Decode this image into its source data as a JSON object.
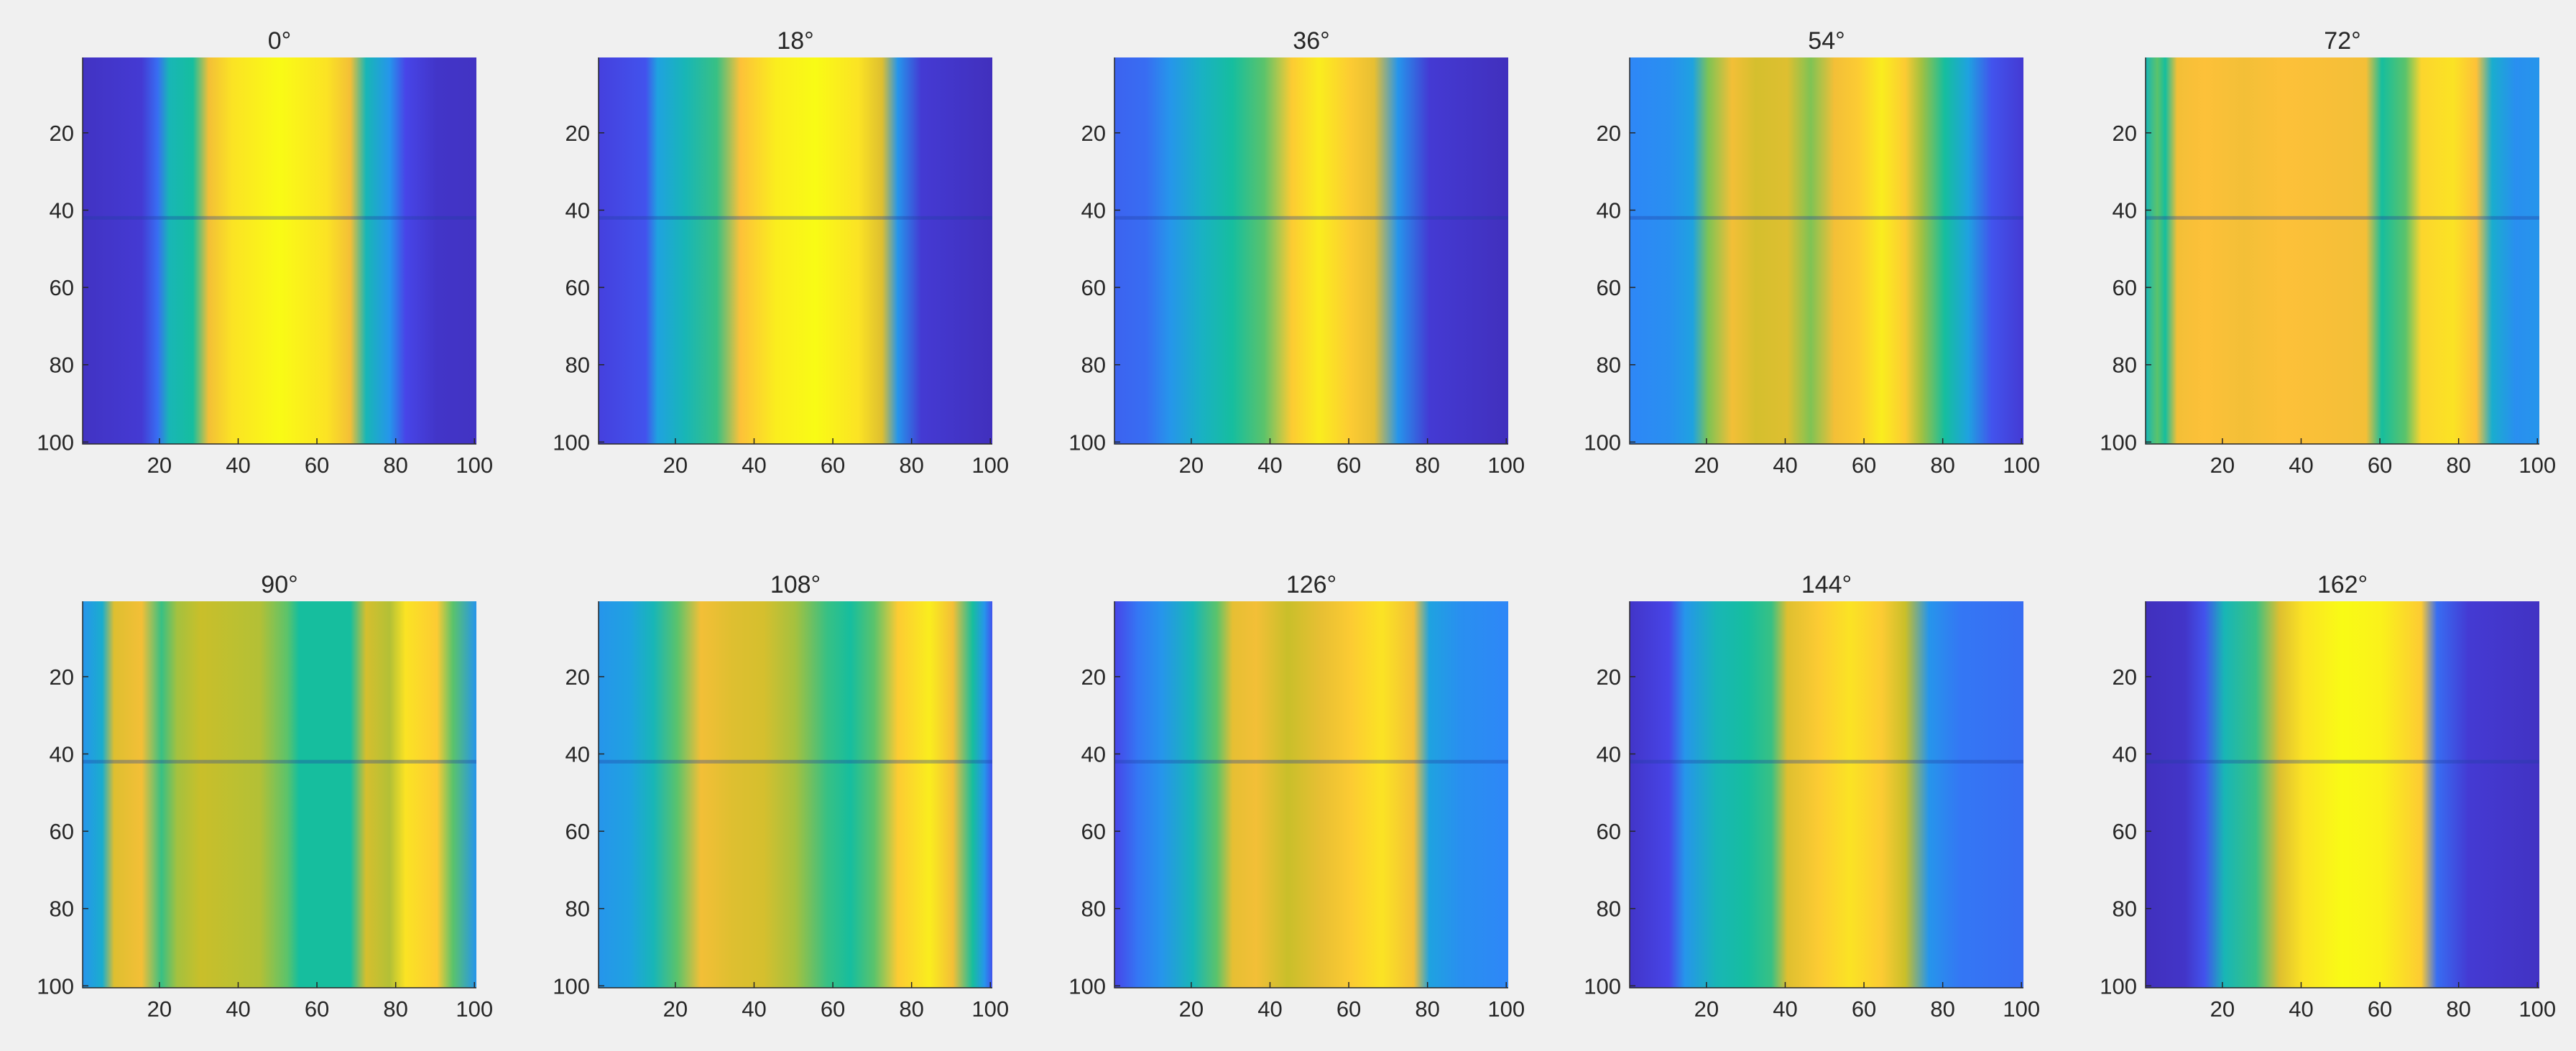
{
  "chart_data": [
    {
      "type": "heatmap",
      "title": "0°",
      "xlim": [
        1,
        100
      ],
      "ylim": [
        1,
        100
      ],
      "y_direction": "reverse",
      "xticks": [
        20,
        40,
        60,
        80,
        100
      ],
      "yticks": [
        20,
        40,
        60,
        80,
        100
      ],
      "row_band_at": 42,
      "column_profile": [
        [
          0,
          0.05
        ],
        [
          15,
          0.08
        ],
        [
          19,
          0.2
        ],
        [
          22,
          0.45
        ],
        [
          28,
          0.5
        ],
        [
          32,
          0.85
        ],
        [
          38,
          0.95
        ],
        [
          50,
          1.0
        ],
        [
          62,
          0.95
        ],
        [
          68,
          0.85
        ],
        [
          72,
          0.45
        ],
        [
          78,
          0.3
        ],
        [
          82,
          0.12
        ],
        [
          90,
          0.06
        ],
        [
          100,
          0.05
        ]
      ]
    },
    {
      "type": "heatmap",
      "title": "18°",
      "xlim": [
        1,
        100
      ],
      "ylim": [
        1,
        100
      ],
      "y_direction": "reverse",
      "xticks": [
        20,
        40,
        60,
        80,
        100
      ],
      "yticks": [
        20,
        40,
        60,
        80,
        100
      ],
      "row_band_at": 42,
      "column_profile": [
        [
          0,
          0.1
        ],
        [
          12,
          0.15
        ],
        [
          15,
          0.35
        ],
        [
          22,
          0.45
        ],
        [
          30,
          0.55
        ],
        [
          36,
          0.88
        ],
        [
          45,
          0.97
        ],
        [
          55,
          1.0
        ],
        [
          66,
          0.95
        ],
        [
          72,
          0.8
        ],
        [
          76,
          0.3
        ],
        [
          82,
          0.08
        ],
        [
          100,
          0.04
        ]
      ]
    },
    {
      "type": "heatmap",
      "title": "36°",
      "xlim": [
        1,
        100
      ],
      "ylim": [
        1,
        100
      ],
      "y_direction": "reverse",
      "xticks": [
        20,
        40,
        60,
        80,
        100
      ],
      "yticks": [
        20,
        40,
        60,
        80,
        100
      ],
      "row_band_at": 42,
      "column_profile": [
        [
          0,
          0.18
        ],
        [
          8,
          0.2
        ],
        [
          14,
          0.3
        ],
        [
          22,
          0.42
        ],
        [
          30,
          0.5
        ],
        [
          38,
          0.6
        ],
        [
          45,
          0.9
        ],
        [
          52,
          0.97
        ],
        [
          60,
          0.9
        ],
        [
          66,
          0.82
        ],
        [
          72,
          0.3
        ],
        [
          80,
          0.08
        ],
        [
          100,
          0.04
        ]
      ]
    },
    {
      "type": "heatmap",
      "title": "54°",
      "xlim": [
        1,
        100
      ],
      "ylim": [
        1,
        100
      ],
      "y_direction": "reverse",
      "xticks": [
        20,
        40,
        60,
        80,
        100
      ],
      "yticks": [
        20,
        40,
        60,
        80,
        100
      ],
      "row_band_at": 42,
      "column_profile": [
        [
          0,
          0.25
        ],
        [
          10,
          0.28
        ],
        [
          16,
          0.35
        ],
        [
          20,
          0.65
        ],
        [
          26,
          0.85
        ],
        [
          32,
          0.78
        ],
        [
          40,
          0.8
        ],
        [
          46,
          0.65
        ],
        [
          52,
          0.85
        ],
        [
          58,
          0.9
        ],
        [
          64,
          0.97
        ],
        [
          70,
          0.9
        ],
        [
          74,
          0.7
        ],
        [
          80,
          0.5
        ],
        [
          86,
          0.35
        ],
        [
          92,
          0.15
        ],
        [
          100,
          0.08
        ]
      ]
    },
    {
      "type": "heatmap",
      "title": "72°",
      "xlim": [
        1,
        100
      ],
      "ylim": [
        1,
        100
      ],
      "y_direction": "reverse",
      "xticks": [
        20,
        40,
        60,
        80,
        100
      ],
      "yticks": [
        20,
        40,
        60,
        80,
        100
      ],
      "row_band_at": 42,
      "column_profile": [
        [
          0,
          0.45
        ],
        [
          3,
          0.6
        ],
        [
          5,
          0.5
        ],
        [
          8,
          0.85
        ],
        [
          15,
          0.88
        ],
        [
          25,
          0.85
        ],
        [
          35,
          0.88
        ],
        [
          48,
          0.86
        ],
        [
          56,
          0.85
        ],
        [
          60,
          0.5
        ],
        [
          66,
          0.6
        ],
        [
          70,
          0.92
        ],
        [
          78,
          0.95
        ],
        [
          84,
          0.88
        ],
        [
          88,
          0.4
        ],
        [
          94,
          0.28
        ],
        [
          100,
          0.3
        ]
      ]
    },
    {
      "type": "heatmap",
      "title": "90°",
      "xlim": [
        1,
        100
      ],
      "ylim": [
        1,
        100
      ],
      "y_direction": "reverse",
      "xticks": [
        20,
        40,
        60,
        80,
        100
      ],
      "yticks": [
        20,
        40,
        60,
        80,
        100
      ],
      "row_band_at": 42,
      "column_profile": [
        [
          0,
          0.3
        ],
        [
          5,
          0.4
        ],
        [
          8,
          0.8
        ],
        [
          15,
          0.85
        ],
        [
          20,
          0.55
        ],
        [
          24,
          0.7
        ],
        [
          30,
          0.75
        ],
        [
          45,
          0.72
        ],
        [
          52,
          0.6
        ],
        [
          55,
          0.5
        ],
        [
          68,
          0.5
        ],
        [
          72,
          0.78
        ],
        [
          78,
          0.72
        ],
        [
          82,
          0.95
        ],
        [
          90,
          0.9
        ],
        [
          94,
          0.6
        ],
        [
          100,
          0.3
        ]
      ]
    },
    {
      "type": "heatmap",
      "title": "108°",
      "xlim": [
        1,
        100
      ],
      "ylim": [
        1,
        100
      ],
      "y_direction": "reverse",
      "xticks": [
        20,
        40,
        60,
        80,
        100
      ],
      "yticks": [
        20,
        40,
        60,
        80,
        100
      ],
      "row_band_at": 42,
      "column_profile": [
        [
          0,
          0.3
        ],
        [
          8,
          0.35
        ],
        [
          14,
          0.45
        ],
        [
          20,
          0.6
        ],
        [
          26,
          0.85
        ],
        [
          34,
          0.8
        ],
        [
          42,
          0.78
        ],
        [
          50,
          0.7
        ],
        [
          58,
          0.55
        ],
        [
          64,
          0.5
        ],
        [
          70,
          0.6
        ],
        [
          76,
          0.9
        ],
        [
          84,
          0.97
        ],
        [
          90,
          0.85
        ],
        [
          95,
          0.5
        ],
        [
          98,
          0.3
        ],
        [
          100,
          0.15
        ]
      ]
    },
    {
      "type": "heatmap",
      "title": "126°",
      "xlim": [
        1,
        100
      ],
      "ylim": [
        1,
        100
      ],
      "y_direction": "reverse",
      "xticks": [
        20,
        40,
        60,
        80,
        100
      ],
      "yticks": [
        20,
        40,
        60,
        80,
        100
      ],
      "row_band_at": 42,
      "column_profile": [
        [
          0,
          0.12
        ],
        [
          6,
          0.22
        ],
        [
          12,
          0.3
        ],
        [
          20,
          0.45
        ],
        [
          26,
          0.6
        ],
        [
          30,
          0.82
        ],
        [
          36,
          0.85
        ],
        [
          44,
          0.75
        ],
        [
          52,
          0.82
        ],
        [
          60,
          0.9
        ],
        [
          68,
          0.95
        ],
        [
          76,
          0.85
        ],
        [
          80,
          0.35
        ],
        [
          88,
          0.28
        ],
        [
          100,
          0.25
        ]
      ]
    },
    {
      "type": "heatmap",
      "title": "144°",
      "xlim": [
        1,
        100
      ],
      "ylim": [
        1,
        100
      ],
      "y_direction": "reverse",
      "xticks": [
        20,
        40,
        60,
        80,
        100
      ],
      "yticks": [
        20,
        40,
        60,
        80,
        100
      ],
      "row_band_at": 42,
      "column_profile": [
        [
          0,
          0.06
        ],
        [
          10,
          0.12
        ],
        [
          14,
          0.3
        ],
        [
          22,
          0.45
        ],
        [
          30,
          0.5
        ],
        [
          36,
          0.55
        ],
        [
          40,
          0.8
        ],
        [
          48,
          0.9
        ],
        [
          56,
          0.95
        ],
        [
          64,
          0.9
        ],
        [
          70,
          0.75
        ],
        [
          76,
          0.3
        ],
        [
          84,
          0.22
        ],
        [
          100,
          0.2
        ]
      ]
    },
    {
      "type": "heatmap",
      "title": "162°",
      "xlim": [
        1,
        100
      ],
      "ylim": [
        1,
        100
      ],
      "y_direction": "reverse",
      "xticks": [
        20,
        40,
        60,
        80,
        100
      ],
      "yticks": [
        20,
        40,
        60,
        80,
        100
      ],
      "row_band_at": 42,
      "column_profile": [
        [
          0,
          0.04
        ],
        [
          10,
          0.06
        ],
        [
          15,
          0.15
        ],
        [
          20,
          0.45
        ],
        [
          28,
          0.55
        ],
        [
          34,
          0.8
        ],
        [
          40,
          0.95
        ],
        [
          50,
          1.0
        ],
        [
          60,
          0.98
        ],
        [
          70,
          0.9
        ],
        [
          74,
          0.2
        ],
        [
          82,
          0.08
        ],
        [
          100,
          0.05
        ]
      ]
    }
  ],
  "colormap": [
    "#3e26a8",
    "#4746eb",
    "#2e87f7",
    "#1ba9da",
    "#16be9e",
    "#6cc45e",
    "#c9bf2a",
    "#fdbf3a",
    "#f9fb15"
  ]
}
